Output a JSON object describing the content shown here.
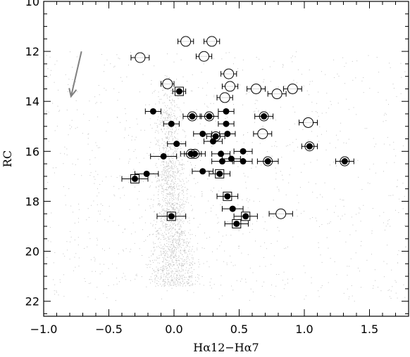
{
  "chart_data": {
    "type": "scatter",
    "title": "",
    "xlabel": "Hα12−Hα7",
    "ylabel": "RC",
    "xlim": [
      -1.0,
      1.8
    ],
    "ylim": [
      22.6,
      10
    ],
    "y_inverted": true,
    "grid": false,
    "legend": "none",
    "x_major_ticks": [
      -1.0,
      -0.5,
      0.0,
      0.5,
      1.0,
      1.5
    ],
    "x_tick_labels": [
      "−1.0",
      "−0.5",
      "0.0",
      "0.5",
      "1.0",
      "1.5"
    ],
    "y_major_ticks": [
      10,
      12,
      14,
      16,
      18,
      20,
      22
    ],
    "y_tick_labels": [
      "10",
      "12",
      "14",
      "16",
      "18",
      "20",
      "22"
    ],
    "background_field": {
      "description_color": "#909090",
      "ridge": [
        [
          13.0,
          -0.04,
          0.05
        ],
        [
          14.0,
          -0.05,
          0.07
        ],
        [
          15.0,
          -0.05,
          0.08
        ],
        [
          16.0,
          -0.04,
          0.09
        ],
        [
          17.0,
          -0.03,
          0.1
        ],
        [
          18.0,
          -0.02,
          0.11
        ],
        [
          19.0,
          -0.01,
          0.12
        ],
        [
          20.0,
          0.0,
          0.14
        ],
        [
          21.0,
          0.0,
          0.16
        ]
      ]
    },
    "reddening_arrow": {
      "from": [
        -0.71,
        12.0
      ],
      "to": [
        -0.79,
        13.8
      ],
      "color": "#808080"
    },
    "series": [
      {
        "marker": "filled-circle",
        "points": [
          {
            "x": 0.04,
            "y": 13.6,
            "xerr": 0.05
          },
          {
            "x": -0.16,
            "y": 14.4,
            "xerr": 0.06
          },
          {
            "x": -0.02,
            "y": 14.9,
            "xerr": 0.06
          },
          {
            "x": 0.14,
            "y": 14.6,
            "xerr": 0.07
          },
          {
            "x": 0.27,
            "y": 14.6,
            "xerr": 0.07
          },
          {
            "x": 0.4,
            "y": 14.4,
            "xerr": 0.06
          },
          {
            "x": 0.4,
            "y": 14.9,
            "xerr": 0.06
          },
          {
            "x": 0.69,
            "y": 14.6,
            "xerr": 0.07
          },
          {
            "x": 0.22,
            "y": 15.3,
            "xerr": 0.07
          },
          {
            "x": 0.32,
            "y": 15.4,
            "xerr": 0.07
          },
          {
            "x": 0.3,
            "y": 15.6,
            "xerr": 0.07
          },
          {
            "x": 0.41,
            "y": 15.3,
            "xerr": 0.06
          },
          {
            "x": 0.02,
            "y": 15.7,
            "xerr": 0.07
          },
          {
            "x": 0.13,
            "y": 16.1,
            "xerr": 0.08
          },
          {
            "x": 0.16,
            "y": 16.1,
            "xerr": 0.08
          },
          {
            "x": -0.08,
            "y": 16.2,
            "xerr": 0.1
          },
          {
            "x": 0.36,
            "y": 16.1,
            "xerr": 0.07
          },
          {
            "x": 0.44,
            "y": 16.3,
            "xerr": 0.07
          },
          {
            "x": 0.53,
            "y": 16.0,
            "xerr": 0.07
          },
          {
            "x": 0.53,
            "y": 16.4,
            "xerr": 0.07
          },
          {
            "x": 0.37,
            "y": 16.4,
            "xerr": 0.08
          },
          {
            "x": 0.72,
            "y": 16.4,
            "xerr": 0.08
          },
          {
            "x": 1.04,
            "y": 15.8,
            "xerr": 0.06
          },
          {
            "x": 1.31,
            "y": 16.4,
            "xerr": 0.07
          },
          {
            "x": -0.21,
            "y": 16.9,
            "xerr": 0.09
          },
          {
            "x": -0.3,
            "y": 17.1,
            "xerr": 0.1
          },
          {
            "x": 0.22,
            "y": 16.8,
            "xerr": 0.08
          },
          {
            "x": 0.35,
            "y": 16.9,
            "xerr": 0.08
          },
          {
            "x": 0.41,
            "y": 17.8,
            "xerr": 0.08
          },
          {
            "x": 0.45,
            "y": 18.3,
            "xerr": 0.08
          },
          {
            "x": 0.55,
            "y": 18.6,
            "xerr": 0.09
          },
          {
            "x": 0.48,
            "y": 18.9,
            "xerr": 0.09
          },
          {
            "x": -0.02,
            "y": 18.6,
            "xerr": 0.11
          }
        ]
      },
      {
        "marker": "open-circle",
        "points": [
          {
            "x": 0.09,
            "y": 11.6,
            "xerr": 0.06
          },
          {
            "x": 0.29,
            "y": 11.6,
            "xerr": 0.06
          },
          {
            "x": -0.26,
            "y": 12.25,
            "xerr": 0.07
          },
          {
            "x": 0.23,
            "y": 12.2,
            "xerr": 0.06
          },
          {
            "x": 0.42,
            "y": 12.9,
            "xerr": 0.06
          },
          {
            "x": -0.05,
            "y": 13.3,
            "xerr": 0.05
          },
          {
            "x": 0.43,
            "y": 13.4,
            "xerr": 0.06
          },
          {
            "x": 0.63,
            "y": 13.5,
            "xerr": 0.07
          },
          {
            "x": 0.79,
            "y": 13.7,
            "xerr": 0.07
          },
          {
            "x": 0.91,
            "y": 13.5,
            "xerr": 0.07
          },
          {
            "x": 0.39,
            "y": 13.85,
            "xerr": 0.06
          },
          {
            "x": 0.68,
            "y": 15.3,
            "xerr": 0.07
          },
          {
            "x": 1.03,
            "y": 14.85,
            "xerr": 0.07
          },
          {
            "x": 0.82,
            "y": 18.5,
            "xerr": 0.09
          }
        ]
      },
      {
        "marker": "circle-halo",
        "points": [
          {
            "x": 0.14,
            "y": 14.6
          },
          {
            "x": 0.27,
            "y": 14.6
          },
          {
            "x": 0.69,
            "y": 14.6
          },
          {
            "x": 0.32,
            "y": 15.4
          },
          {
            "x": 0.13,
            "y": 16.1
          },
          {
            "x": 0.16,
            "y": 16.1
          },
          {
            "x": 0.72,
            "y": 16.4
          },
          {
            "x": 1.04,
            "y": 15.8
          },
          {
            "x": 1.31,
            "y": 16.4
          }
        ]
      },
      {
        "marker": "open-square",
        "points": [
          {
            "x": 0.04,
            "y": 13.6
          },
          {
            "x": -0.3,
            "y": 17.1
          },
          {
            "x": 0.35,
            "y": 16.9
          },
          {
            "x": 0.41,
            "y": 17.8
          },
          {
            "x": 0.55,
            "y": 18.6
          },
          {
            "x": 0.48,
            "y": 18.9
          },
          {
            "x": -0.02,
            "y": 18.6
          }
        ]
      }
    ]
  }
}
